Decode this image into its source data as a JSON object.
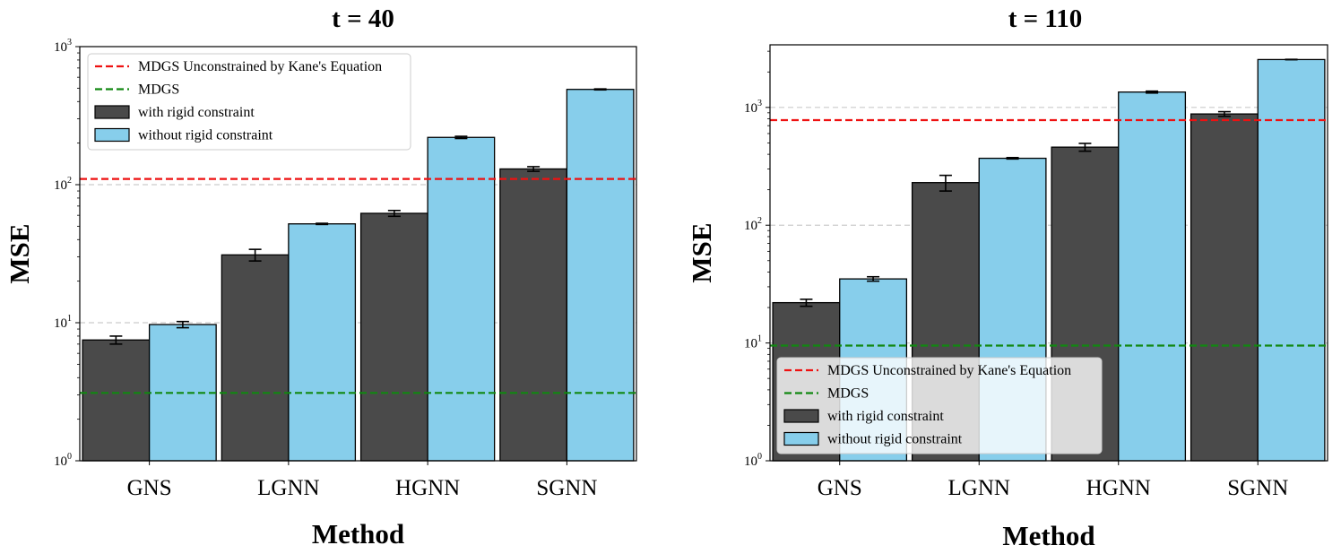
{
  "chart_data": [
    {
      "type": "bar",
      "title": "t = 40",
      "xlabel": "Method",
      "ylabel": "MSE",
      "yscale": "log",
      "ylim": [
        1,
        1000
      ],
      "yticks": [
        {
          "value": 1,
          "base": "10",
          "exp": "0"
        },
        {
          "value": 10,
          "base": "10",
          "exp": "1"
        },
        {
          "value": 100,
          "base": "10",
          "exp": "2"
        },
        {
          "value": 1000,
          "base": "10",
          "exp": "3"
        }
      ],
      "grid": "horizontal-dashed",
      "categories": [
        "GNS",
        "LGNN",
        "HGNN",
        "SGNN"
      ],
      "series": [
        {
          "name": "with rigid constraint",
          "color": "#4a4a4a",
          "values": [
            7.5,
            31,
            62,
            130
          ],
          "errors": [
            0.5,
            3,
            3,
            5
          ]
        },
        {
          "name": "without rigid constraint",
          "color": "#87ceeb",
          "values": [
            9.7,
            52,
            220,
            490
          ],
          "errors": [
            0.5,
            0.5,
            4,
            4
          ]
        }
      ],
      "reference_lines": [
        {
          "name": "MDGS Unconstrained by Kane's Equation",
          "value": 110,
          "color": "#ee1111"
        },
        {
          "name": "MDGS",
          "value": 3.1,
          "color": "#118811"
        }
      ],
      "legend_position": "upper-left"
    },
    {
      "type": "bar",
      "title": "t = 110",
      "xlabel": "Method",
      "ylabel": "MSE",
      "yscale": "log",
      "ylim": [
        1,
        3400
      ],
      "yticks": [
        {
          "value": 1,
          "base": "10",
          "exp": "0"
        },
        {
          "value": 10,
          "base": "10",
          "exp": "1"
        },
        {
          "value": 100,
          "base": "10",
          "exp": "2"
        },
        {
          "value": 1000,
          "base": "10",
          "exp": "3"
        }
      ],
      "grid": "horizontal-dashed",
      "categories": [
        "GNS",
        "LGNN",
        "HGNN",
        "SGNN"
      ],
      "series": [
        {
          "name": "with rigid constraint",
          "color": "#4a4a4a",
          "values": [
            22,
            230,
            460,
            880
          ],
          "errors": [
            1.5,
            35,
            35,
            40
          ]
        },
        {
          "name": "without rigid constraint",
          "color": "#87ceeb",
          "values": [
            35,
            370,
            1350,
            2550
          ],
          "errors": [
            1.5,
            5,
            25,
            10
          ]
        }
      ],
      "reference_lines": [
        {
          "name": "MDGS Unconstrained by Kane's Equation",
          "value": 780,
          "color": "#ee1111"
        },
        {
          "name": "MDGS",
          "value": 9.5,
          "color": "#118811"
        }
      ],
      "legend_position": "lower-left"
    }
  ]
}
